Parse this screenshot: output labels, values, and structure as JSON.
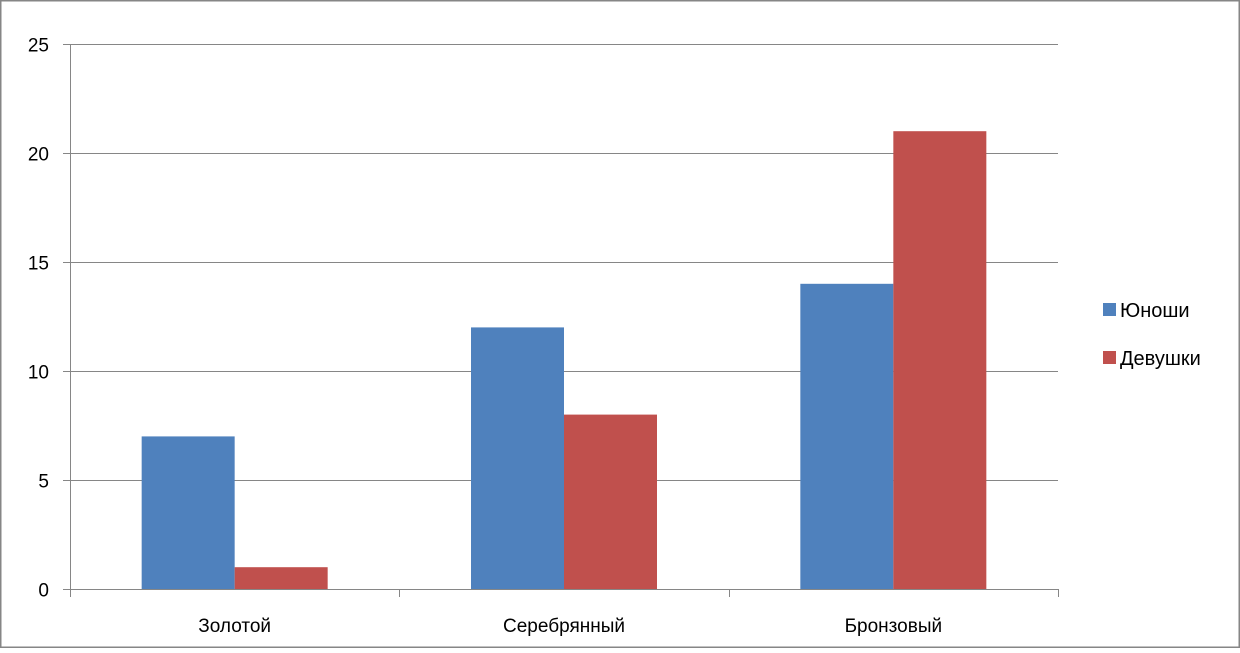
{
  "chart_data": {
    "type": "bar",
    "categories": [
      "Золотой",
      "Серебрянный",
      "Бронзовый"
    ],
    "series": [
      {
        "name": "Юноши",
        "values": [
          7,
          12,
          14
        ],
        "color": "#4f81bd"
      },
      {
        "name": "Девушки",
        "values": [
          1,
          8,
          21
        ],
        "color": "#c0504d"
      }
    ],
    "yticks": [
      0,
      5,
      10,
      15,
      20,
      25
    ],
    "ylim": [
      0,
      25
    ],
    "grid": true,
    "legend_position": "right",
    "title": "",
    "xlabel": "",
    "ylabel": ""
  }
}
